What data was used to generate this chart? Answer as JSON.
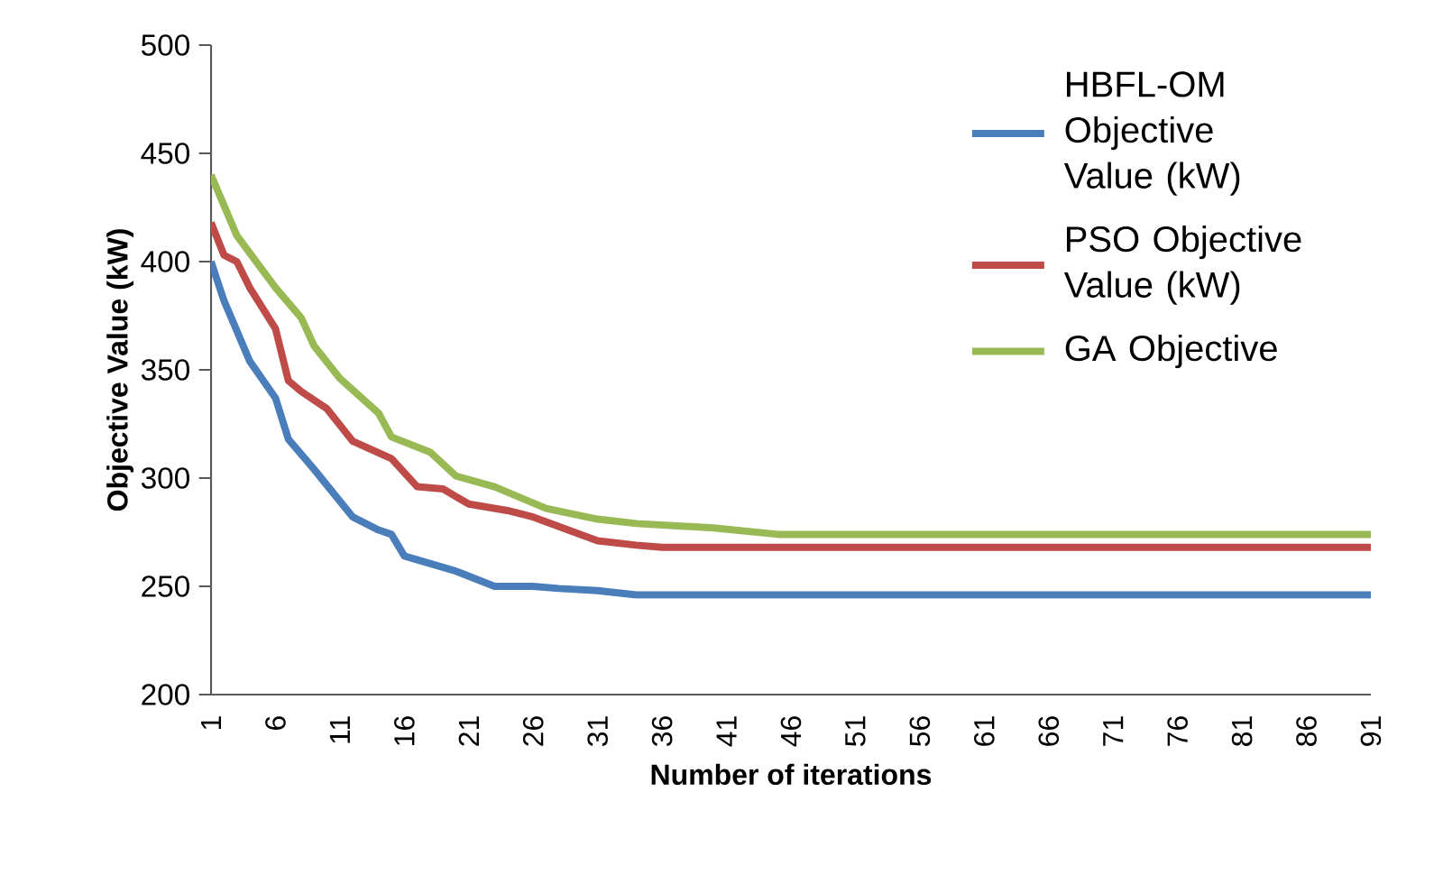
{
  "chart_data": {
    "type": "line",
    "xlabel": "Number of iterations",
    "ylabel": "Objective Value (kW)",
    "xlim": [
      1,
      91
    ],
    "xticks": [
      1,
      6,
      11,
      16,
      21,
      26,
      31,
      36,
      41,
      46,
      51,
      56,
      61,
      66,
      71,
      76,
      81,
      86,
      91
    ],
    "ylim": [
      200,
      500
    ],
    "yticks": [
      200,
      250,
      300,
      350,
      400,
      450,
      500
    ],
    "legend": "top right",
    "grid": false,
    "marker": "none",
    "line_style": "solid",
    "series": [
      {
        "name": "HBFL-OM Objective Value (kW)",
        "color": "#4a7ebb",
        "x": [
          1,
          2,
          4,
          6,
          7,
          9,
          12,
          14,
          15,
          16,
          20,
          23,
          26,
          28,
          31,
          34,
          91
        ],
        "values": [
          400,
          382,
          354,
          337,
          318,
          304,
          282,
          276,
          274,
          264,
          257,
          250,
          250,
          249,
          248,
          246,
          246
        ]
      },
      {
        "name": "PSO Objective Value (kW)",
        "color": "#be4b48",
        "x": [
          1,
          2,
          3,
          4,
          6,
          7,
          8,
          10,
          12,
          15,
          17,
          19,
          21,
          24,
          26,
          31,
          34,
          36,
          91
        ],
        "values": [
          418,
          403,
          400,
          388,
          369,
          345,
          340,
          332,
          317,
          309,
          296,
          295,
          288,
          285,
          282,
          271,
          269,
          268,
          268
        ]
      },
      {
        "name": "GA Objective",
        "color": "#98b954",
        "x": [
          1,
          3,
          6,
          8,
          9,
          11,
          14,
          15,
          18,
          20,
          23,
          27,
          31,
          34,
          40,
          45,
          91
        ],
        "values": [
          440,
          412,
          388,
          374,
          361,
          346,
          330,
          319,
          312,
          301,
          296,
          286,
          281,
          279,
          277,
          274,
          274
        ]
      }
    ]
  }
}
